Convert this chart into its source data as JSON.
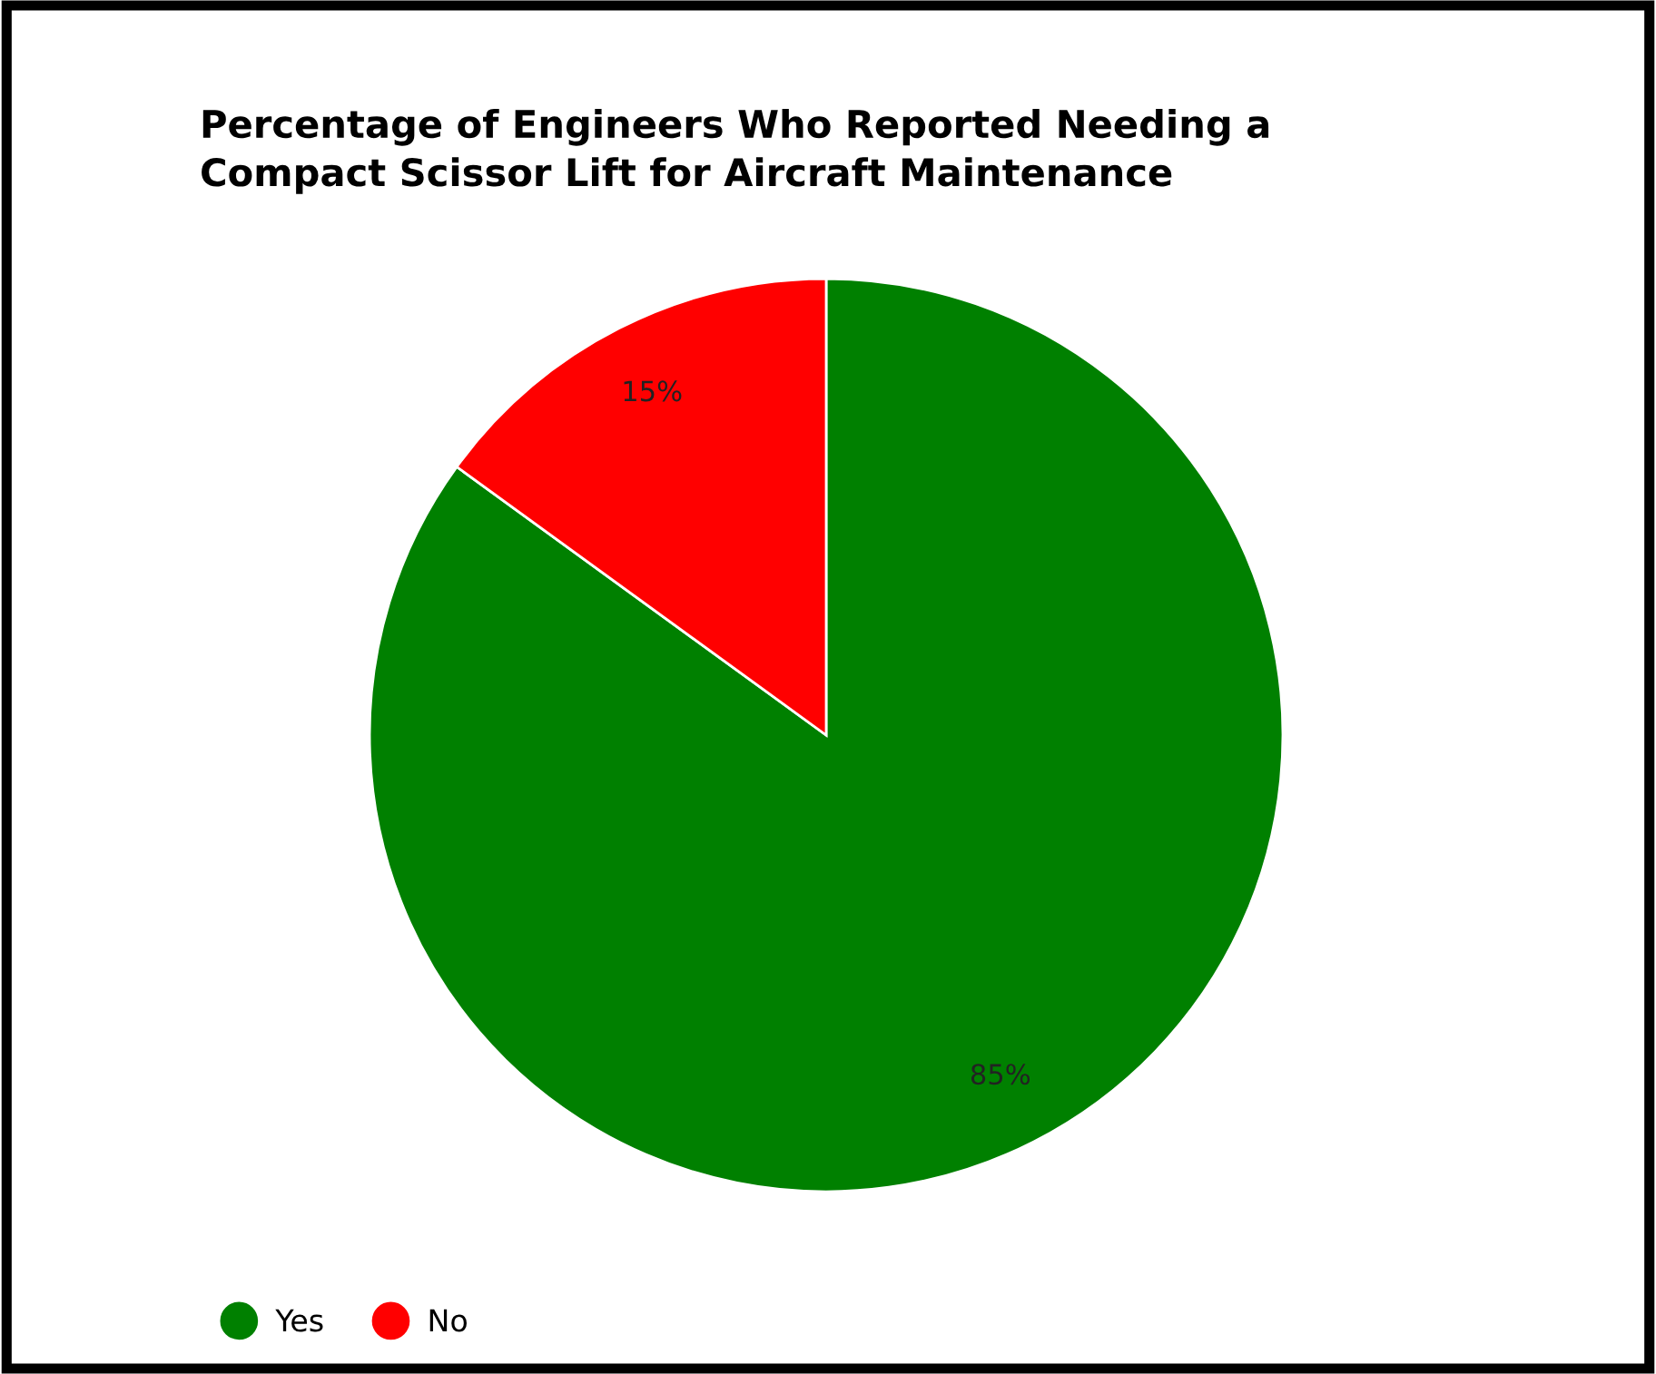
{
  "chart_data": {
    "type": "pie",
    "title": "Percentage of Engineers Who Reported Needing a\nCompact Scissor Lift for Aircraft Maintenance",
    "categories": [
      "Yes",
      "No"
    ],
    "values": [
      85,
      15
    ],
    "colors": [
      "#008000",
      "#ff0000"
    ],
    "value_labels": [
      "85%",
      "15%"
    ],
    "legend": "bottom left"
  }
}
